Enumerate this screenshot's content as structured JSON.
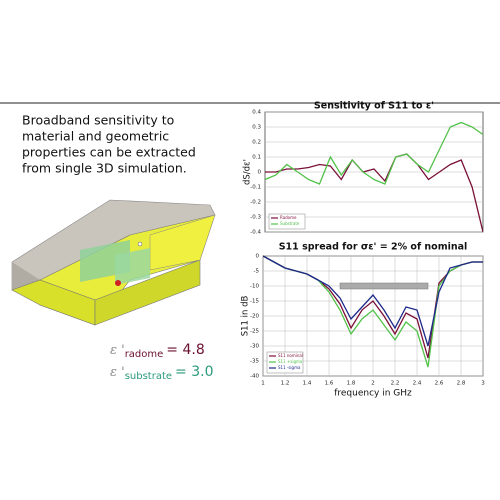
{
  "intro": [
    "Broadband sensitivity to",
    "material and geometric",
    "properties can be extracted",
    "from single 3D simulation."
  ],
  "params": [
    {
      "symbol": "ε '",
      "sub": "radome",
      "value": "= 4.8",
      "color": "#6b1030"
    },
    {
      "symbol": "ε '",
      "sub": "substrate",
      "value": "= 3.0",
      "color": "#2a9a7a"
    }
  ],
  "chart_data": [
    {
      "type": "line",
      "title": "Sensitivity of S11 to ε'",
      "y_label": "dS/dε'",
      "x": [
        1.0,
        1.1,
        1.2,
        1.3,
        1.4,
        1.5,
        1.6,
        1.7,
        1.8,
        1.9,
        2.0,
        2.1,
        2.2,
        2.3,
        2.4,
        2.5,
        2.6,
        2.7,
        2.8,
        2.9,
        3.0
      ],
      "xlim": [
        1,
        3
      ],
      "ylim": [
        -0.4,
        0.4
      ],
      "yticks": [
        0.4,
        0.3,
        0.2,
        0.1,
        0,
        -0.1,
        -0.2,
        -0.3,
        -0.4
      ],
      "grid": true,
      "legend": "lower-left",
      "series": [
        {
          "name": "Radome",
          "color": "#7a1038",
          "values": [
            0,
            0,
            0.02,
            0.02,
            0.03,
            0.05,
            0.04,
            -0.05,
            0.08,
            0,
            0.02,
            -0.06,
            0.1,
            0.12,
            0.05,
            -0.05,
            0,
            0.05,
            0.08,
            -0.1,
            -0.4
          ]
        },
        {
          "name": "Substrate",
          "color": "#52c24a",
          "values": [
            -0.05,
            -0.02,
            0.05,
            0,
            -0.05,
            -0.08,
            0.1,
            -0.02,
            0.08,
            0,
            -0.05,
            -0.08,
            0.1,
            0.12,
            0.05,
            0,
            0.15,
            0.3,
            0.33,
            0.3,
            0.25
          ]
        }
      ]
    },
    {
      "type": "line",
      "title": "S11 spread for σε' = 2% of nominal",
      "x_label": "frequency in GHz",
      "y_label": "S11 in dB",
      "x": [
        1.0,
        1.1,
        1.2,
        1.3,
        1.4,
        1.5,
        1.6,
        1.7,
        1.8,
        1.9,
        2.0,
        2.1,
        2.2,
        2.3,
        2.4,
        2.5,
        2.6,
        2.7,
        2.8,
        2.9,
        3.0
      ],
      "xlim": [
        1,
        3
      ],
      "xticks": [
        1,
        1.2,
        1.4,
        1.6,
        1.8,
        2,
        2.2,
        2.4,
        2.6,
        2.8,
        3
      ],
      "ylim": [
        -40,
        0
      ],
      "yticks": [
        0,
        -5,
        -10,
        -15,
        -20,
        -25,
        -30,
        -35,
        -40
      ],
      "grid": true,
      "legend": "lower-left",
      "series": [
        {
          "name": "S11 nominal",
          "color": "#7a1038",
          "values": [
            0,
            -2,
            -4,
            -5,
            -6,
            -8,
            -11,
            -16,
            -24,
            -18,
            -15,
            -20,
            -26,
            -19,
            -21,
            -34,
            -9,
            -5,
            -3,
            -2,
            -2
          ]
        },
        {
          "name": "S11 +sigma",
          "color": "#52c24a",
          "values": [
            0,
            -2,
            -4,
            -5,
            -6,
            -8,
            -12,
            -18,
            -26,
            -21,
            -18,
            -23,
            -28,
            -22,
            -25,
            -37,
            -10,
            -5,
            -3,
            -2,
            -2
          ]
        },
        {
          "name": "S11 -sigma",
          "color": "#1e2a8a",
          "values": [
            0,
            -2,
            -4,
            -5,
            -6,
            -8,
            -10,
            -14,
            -21,
            -17,
            -13,
            -18,
            -24,
            -17,
            -18,
            -30,
            -12,
            -4,
            -3,
            -2,
            -2
          ]
        }
      ]
    }
  ]
}
